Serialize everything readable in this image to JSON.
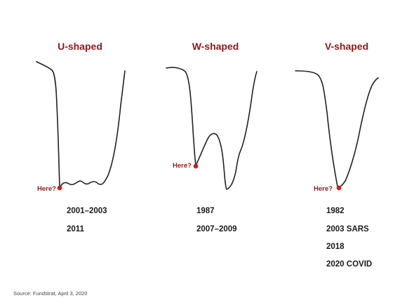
{
  "colors": {
    "title": "#8b1a1a",
    "marker": "#cc1f1f",
    "curve": "#222222",
    "text": "#1a1a1a"
  },
  "chart_data": {
    "type": "line",
    "title": "",
    "panels": [
      {
        "title": "U-shaped",
        "marker_label": "Here?",
        "examples": [
          "2001–2003",
          "2011"
        ]
      },
      {
        "title": "W-shaped",
        "marker_label": "Here?",
        "examples": [
          "1987",
          "2007–2009"
        ]
      },
      {
        "title": "V-shaped",
        "marker_label": "Here?",
        "examples": [
          "1982",
          "2003 SARS",
          "2018",
          "2020 COVID"
        ]
      }
    ]
  },
  "source": "Source: Fundstrat, April 3, 2020"
}
